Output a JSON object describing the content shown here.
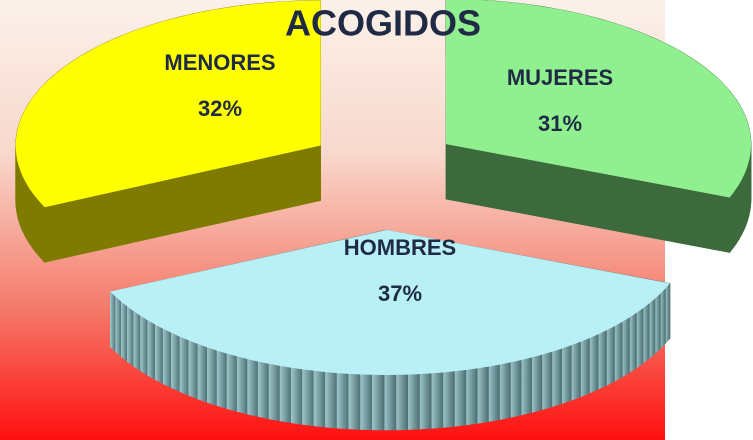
{
  "chart_data": {
    "type": "pie",
    "title": "ACOGIDOS",
    "categories": [
      "MUJERES",
      "HOMBRES",
      "MENORES"
    ],
    "values": [
      31,
      37,
      32
    ],
    "value_labels": [
      "31%",
      "37%",
      "32%"
    ],
    "colors": [
      "#90f090",
      "#b8f0f5",
      "#ffff00"
    ]
  }
}
